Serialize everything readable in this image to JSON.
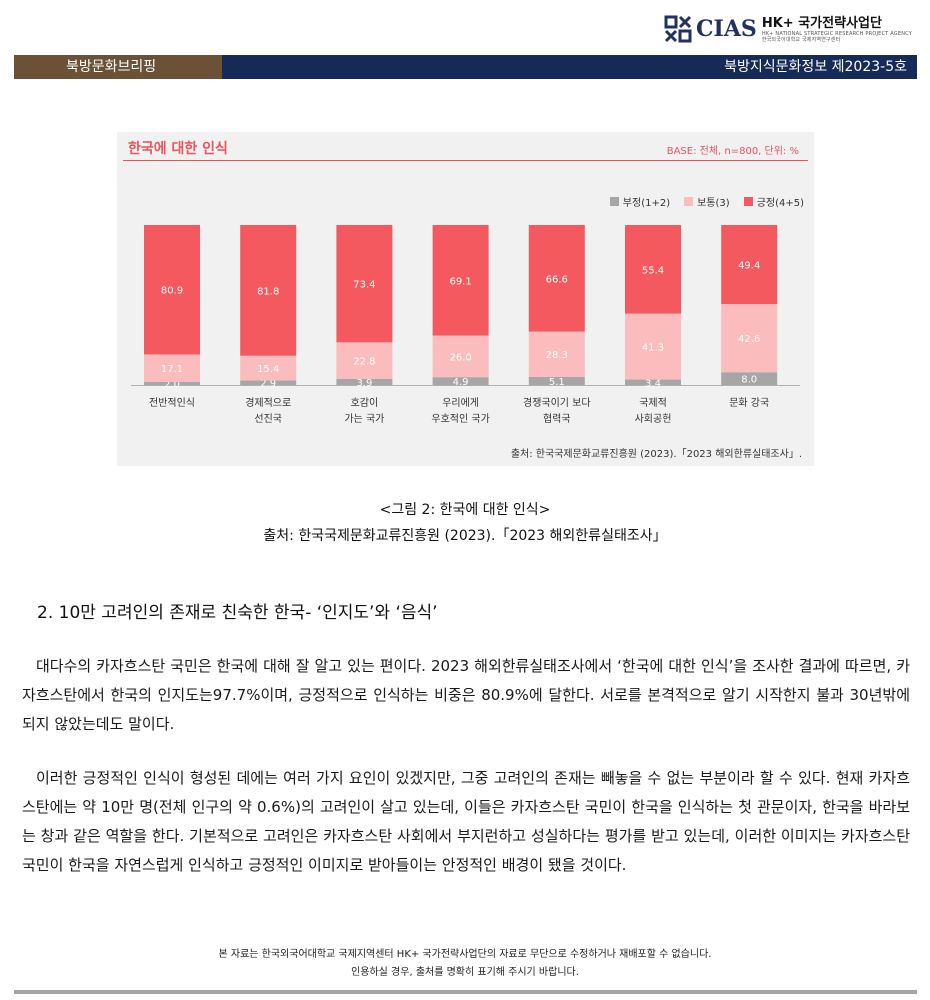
{
  "logo": {
    "name": "CIAS",
    "title": "HK+ 국가전략사업단",
    "subtitle": "HK+ NATIONAL STRATEGIC RESEARCH PROJECT AGENCY",
    "subtitle2": "한국외국어대학교 국제지역연구센터"
  },
  "header": {
    "left": "북방문화브리핑",
    "right": "북방지식문화정보 제2023-5호"
  },
  "figure": {
    "title": "한국에 대한 인식",
    "base": "BASE: 전체, n=800, 단위: %",
    "source": "출처: 한국국제문화교류진흥원 (2023).「2023 해외한류실태조사」."
  },
  "chart_data": {
    "type": "bar",
    "stacked": true,
    "categories": [
      [
        "전반적인식"
      ],
      [
        "경제적으로",
        "선진국"
      ],
      [
        "호감이",
        "가는 국가"
      ],
      [
        "우리에게",
        "우호적인 국가"
      ],
      [
        "경쟁국이기 보다",
        "협력국"
      ],
      [
        "국제적",
        "사회공헌"
      ],
      [
        "문화 강국"
      ]
    ],
    "series": [
      {
        "name": "부정(1+2)",
        "color": "#a6a6a6",
        "values": [
          2.0,
          2.9,
          3.9,
          4.9,
          5.1,
          3.4,
          8.0
        ]
      },
      {
        "name": "보통(3)",
        "color": "#fbbcbe",
        "values": [
          17.1,
          15.4,
          22.8,
          26.0,
          28.3,
          41.3,
          42.6
        ]
      },
      {
        "name": "긍정(4+5)",
        "color": "#f4595f",
        "values": [
          80.9,
          81.8,
          73.4,
          69.1,
          66.6,
          55.4,
          49.4
        ]
      }
    ],
    "ylim": [
      0,
      100
    ],
    "legend_position": "top-right",
    "grid": false
  },
  "captions": {
    "figure_caption": "<그림 2: 한국에 대한 인식>",
    "figure_source": "출처: 한국국제문화교류진흥원 (2023).「2023 해외한류실태조사」"
  },
  "section": {
    "heading": "2. 10만 고려인의 존재로 친숙한 한국- ‘인지도’와 ‘음식’"
  },
  "paragraphs": [
    "대다수의 카자흐스탄 국민은 한국에 대해 잘 알고 있는 편이다. 2023 해외한류실태조사에서 ‘한국에 대한 인식’을 조사한 결과에 따르면, 카자흐스탄에서 한국의 인지도는97.7%이며, 긍정적으로 인식하는 비중은 80.9%에 달한다. 서로를 본격적으로 알기 시작한지 불과 30년밖에 되지 않았는데도 말이다.",
    "이러한 긍정적인 인식이 형성된 데에는 여러 가지 요인이 있겠지만, 그중 고려인의 존재는 빼놓을 수 없는 부분이라 할 수 있다. 현재 카자흐스탄에는 약 10만 명(전체 인구의 약 0.6%)의 고려인이 살고 있는데, 이들은 카자흐스탄 국민이 한국을 인식하는 첫 관문이자, 한국을 바라보는 창과 같은 역할을 한다. 기본적으로 고려인은 카자흐스탄 사회에서 부지런하고 성실하다는 평가를 받고 있는데, 이러한 이미지는 카자흐스탄 국민이 한국을 자연스럽게 인식하고 긍정적인 이미지로 받아들이는 안정적인 배경이 됐을 것이다."
  ],
  "footer": {
    "line1": "본 자료는 한국외국어대학교 국제지역센터 HK+ 국가전략사업단의 자료로 무단으로 수정하거나 재배포할 수 없습니다.",
    "line2": "인용하실 경우, 출처를 명확히 표기해 주시기 바랍니다."
  },
  "colors": {
    "header_left": "#6b5236",
    "header_right": "#152a57",
    "accent": "#e8555c"
  }
}
